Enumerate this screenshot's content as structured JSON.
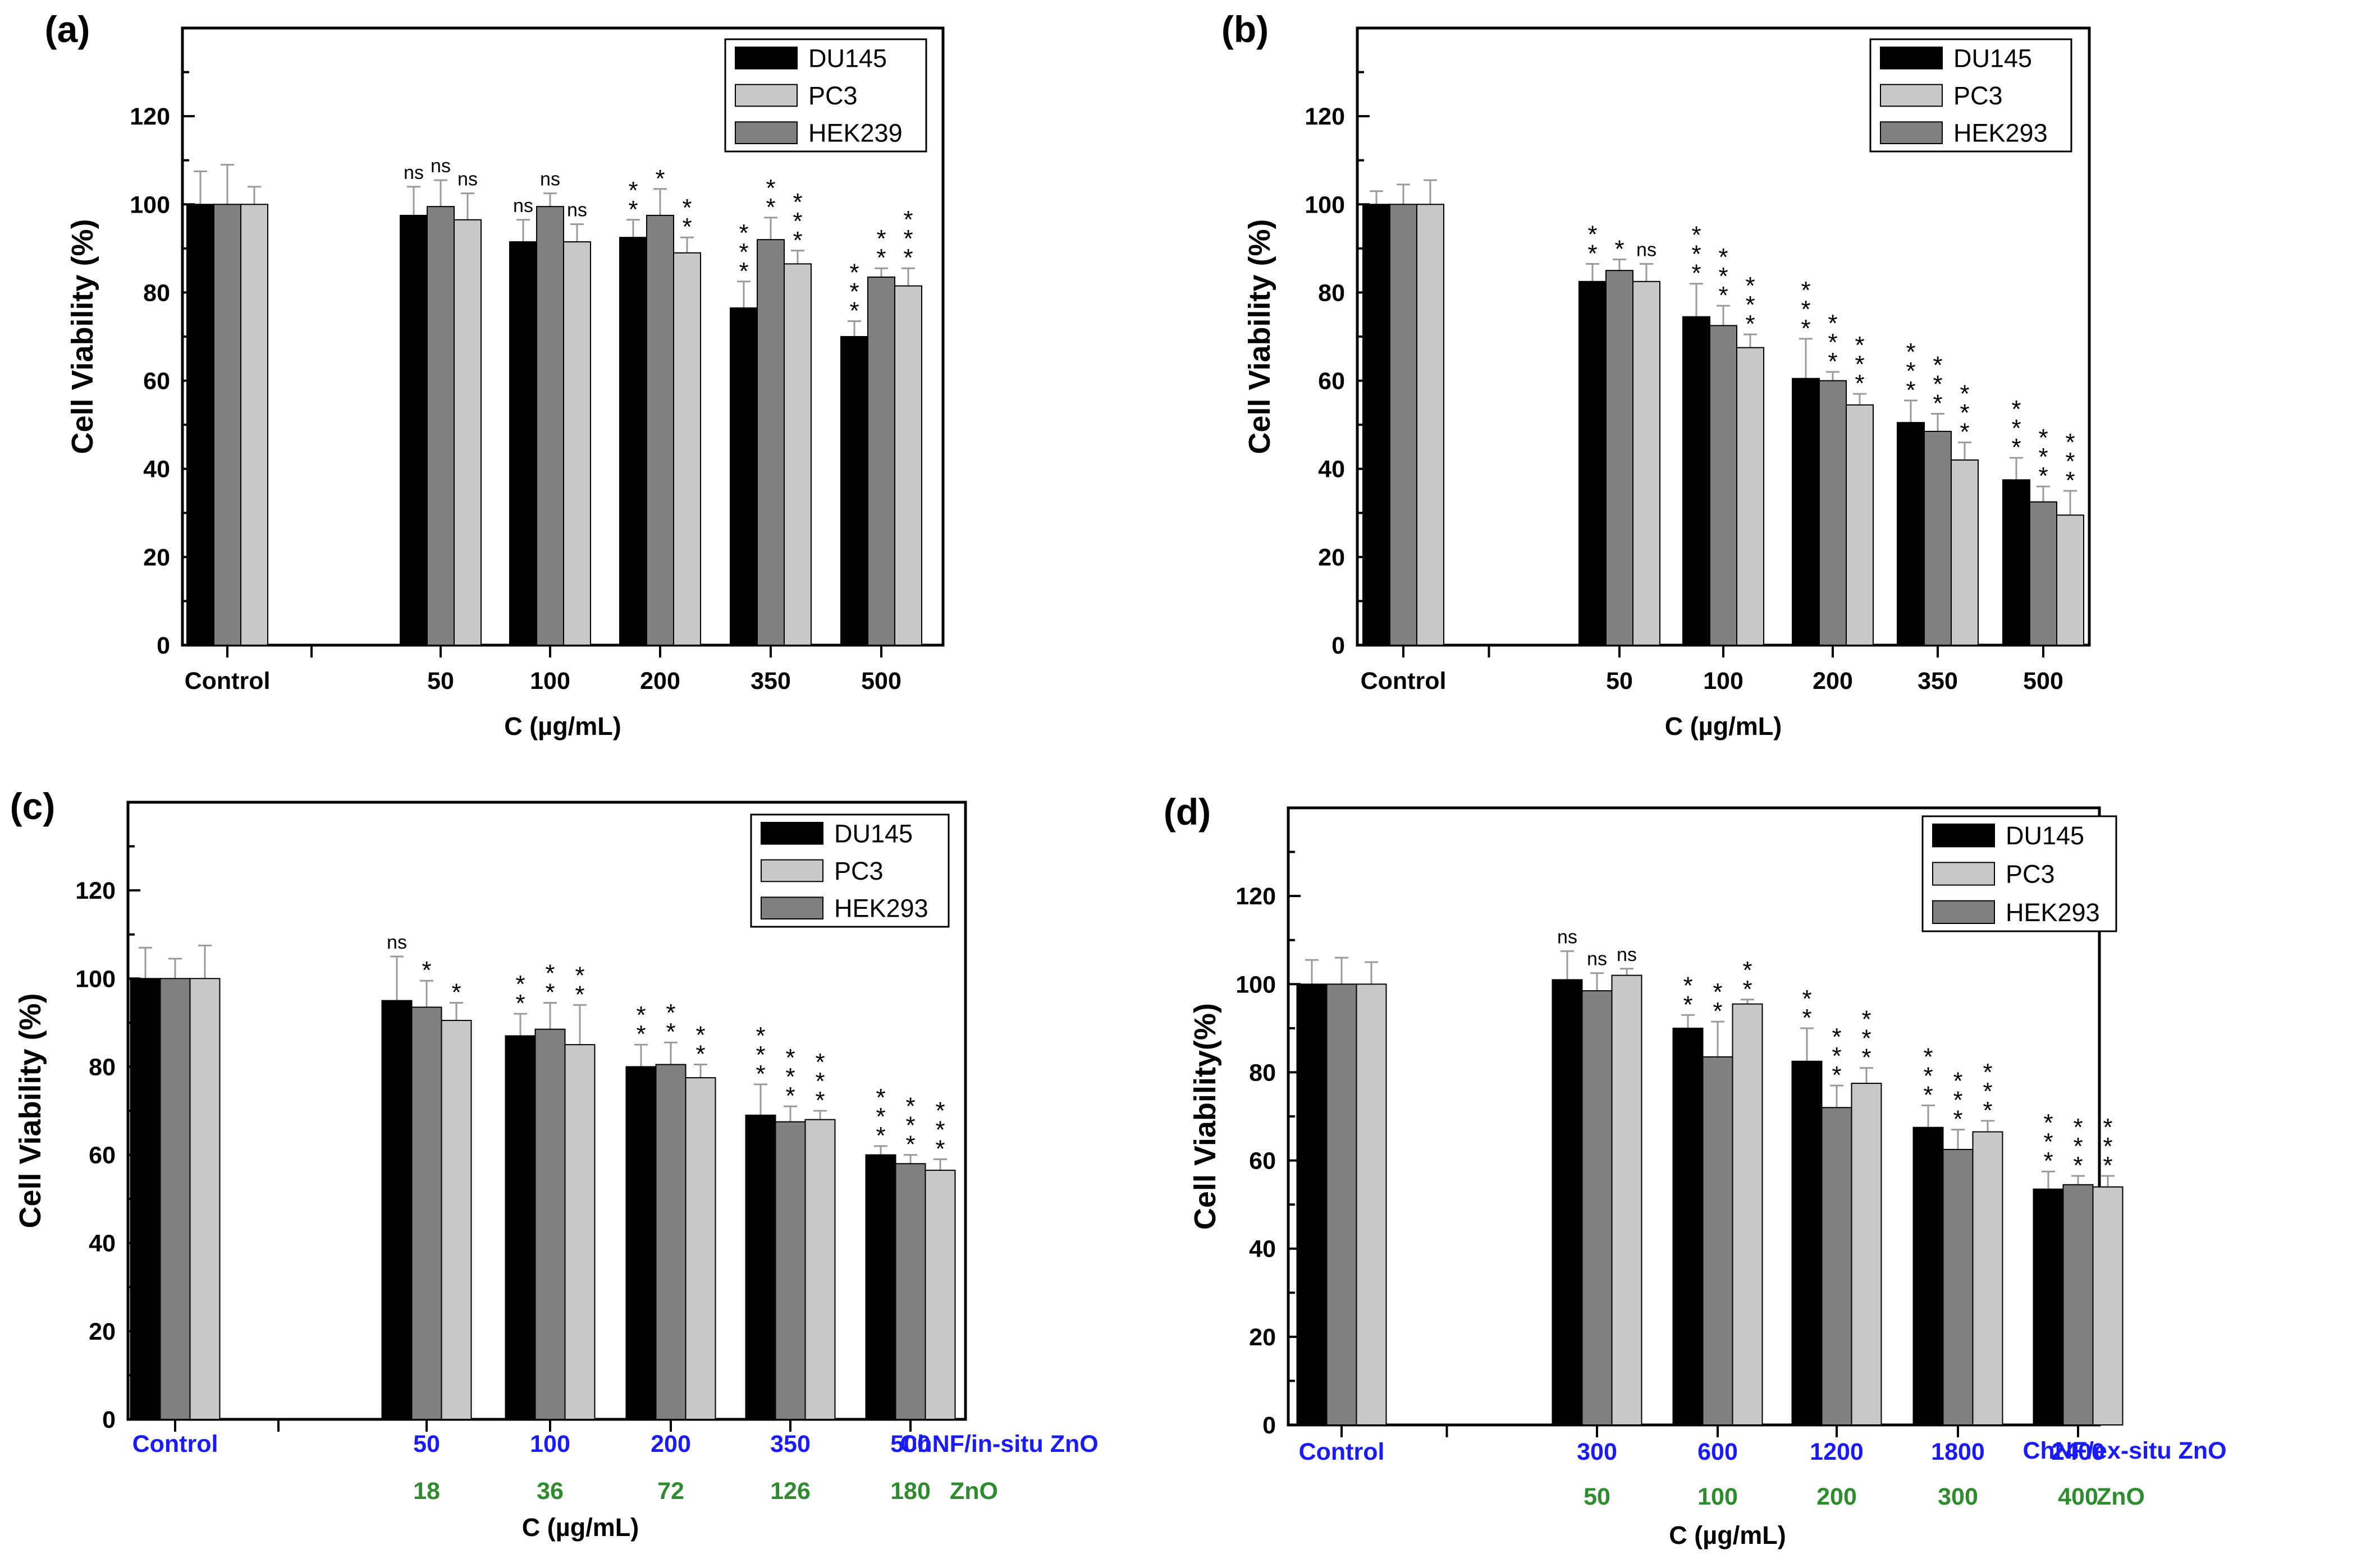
{
  "colors": {
    "du145": "#000000",
    "pc3": "#c8c8c8",
    "hek": "#808080",
    "blue_label": "#1a1aff",
    "green_label": "#2e8b2e",
    "frame": "#000000"
  },
  "chart_data": [
    {
      "panel_label": "(a)",
      "type": "bar",
      "ylabel": "Cell Viability (%)",
      "xlabel": "C (µg/mL)",
      "ylim": [
        0,
        140
      ],
      "yticks": [
        0,
        20,
        40,
        60,
        80,
        100,
        120
      ],
      "categories": [
        "Control",
        "50",
        "100",
        "200",
        "350",
        "500"
      ],
      "legend": [
        "DU145",
        "PC3",
        "HEK239"
      ],
      "bar_order": [
        "DU145",
        "HEK239",
        "PC3"
      ],
      "series": [
        {
          "name": "DU145",
          "color_key": "du145",
          "values": [
            100,
            97.5,
            91.5,
            92.5,
            76.5,
            70
          ],
          "errors": [
            7.5,
            6.5,
            5,
            4,
            6,
            3.5
          ],
          "sig": [
            "",
            "ns",
            "ns",
            "**",
            "***",
            "***"
          ]
        },
        {
          "name": "HEK239",
          "color_key": "hek",
          "values": [
            100,
            99.5,
            99.5,
            97.5,
            92,
            83.5
          ],
          "errors": [
            9,
            6,
            3,
            6,
            5,
            2
          ],
          "sig": [
            "",
            "ns",
            "ns",
            "*",
            "**",
            "**"
          ]
        },
        {
          "name": "PC3",
          "color_key": "pc3",
          "values": [
            100,
            96.5,
            91.5,
            89,
            86.5,
            81.5
          ],
          "errors": [
            4,
            6,
            4,
            3.5,
            3,
            4
          ],
          "sig": [
            "",
            "ns",
            "ns",
            "**",
            "***",
            "***"
          ]
        }
      ]
    },
    {
      "panel_label": "(b)",
      "type": "bar",
      "ylabel": "Cell Viability (%)",
      "xlabel": "C (µg/mL)",
      "ylim": [
        0,
        140
      ],
      "yticks": [
        0,
        20,
        40,
        60,
        80,
        100,
        120
      ],
      "categories": [
        "Control",
        "50",
        "100",
        "200",
        "350",
        "500"
      ],
      "legend": [
        "DU145",
        "PC3",
        "HEK293"
      ],
      "bar_order": [
        "DU145",
        "HEK293",
        "PC3"
      ],
      "series": [
        {
          "name": "DU145",
          "color_key": "du145",
          "values": [
            100,
            82.5,
            74.5,
            60.5,
            50.5,
            37.5
          ],
          "errors": [
            3,
            4,
            7.5,
            9,
            5,
            5
          ],
          "sig": [
            "",
            "**",
            "***",
            "***",
            "***",
            "***"
          ]
        },
        {
          "name": "HEK293",
          "color_key": "hek",
          "values": [
            100,
            85,
            72.5,
            60,
            48.5,
            32.5
          ],
          "errors": [
            4.5,
            2.5,
            4.5,
            2,
            4,
            3.5
          ],
          "sig": [
            "",
            "*",
            "***",
            "***",
            "***",
            "***"
          ]
        },
        {
          "name": "PC3",
          "color_key": "pc3",
          "values": [
            100,
            82.5,
            67.5,
            54.5,
            42,
            29.5
          ],
          "errors": [
            5.5,
            4,
            3,
            2.5,
            4,
            5.5
          ],
          "sig": [
            "",
            "ns",
            "***",
            "***",
            "***",
            "***"
          ]
        }
      ]
    },
    {
      "panel_label": "(c)",
      "type": "bar",
      "ylabel": "Cell Viability (%)",
      "xlabel": "C (µg/mL)",
      "ylim": [
        0,
        140
      ],
      "yticks": [
        0,
        20,
        40,
        60,
        80,
        100,
        120
      ],
      "categories": [
        "Control",
        "50",
        "100",
        "200",
        "350",
        "500"
      ],
      "secondary_categories": [
        "",
        "18",
        "36",
        "72",
        "126",
        "180"
      ],
      "secondary_name": "ZnO",
      "primary_name": "ChNF/in-situ ZnO",
      "legend": [
        "DU145",
        "PC3",
        "HEK293"
      ],
      "bar_order": [
        "DU145",
        "HEK293",
        "PC3"
      ],
      "series": [
        {
          "name": "DU145",
          "color_key": "du145",
          "values": [
            100,
            95,
            87,
            80,
            69,
            60
          ],
          "errors": [
            7,
            10,
            5,
            5,
            7,
            2
          ],
          "sig": [
            "",
            "ns",
            "**",
            "**",
            "***",
            "***"
          ]
        },
        {
          "name": "HEK293",
          "color_key": "hek",
          "values": [
            100,
            93.5,
            88.5,
            80.5,
            67.5,
            58
          ],
          "errors": [
            4.5,
            6,
            6,
            5,
            3.5,
            2
          ],
          "sig": [
            "",
            "*",
            "**",
            "**",
            "***",
            "***"
          ]
        },
        {
          "name": "PC3",
          "color_key": "pc3",
          "values": [
            100,
            90.5,
            85,
            77.5,
            68,
            56.5
          ],
          "errors": [
            7.5,
            4,
            9,
            3,
            2,
            2.5
          ],
          "sig": [
            "",
            "*",
            "**",
            "**",
            "***",
            "***"
          ]
        }
      ]
    },
    {
      "panel_label": "(d)",
      "type": "bar",
      "ylabel": "Cell Viability(%)",
      "xlabel": "C (µg/mL)",
      "ylim": [
        0,
        140
      ],
      "yticks": [
        0,
        20,
        40,
        60,
        80,
        100,
        120
      ],
      "categories": [
        "Control",
        "300",
        "600",
        "1200",
        "1800",
        "2400"
      ],
      "secondary_categories": [
        "",
        "50",
        "100",
        "200",
        "300",
        "400"
      ],
      "secondary_name": "ZnO",
      "primary_name": "ChNF/ex-situ ZnO",
      "legend": [
        "DU145",
        "PC3",
        "HEK293"
      ],
      "bar_order": [
        "DU145",
        "HEK293",
        "PC3"
      ],
      "series": [
        {
          "name": "DU145",
          "color_key": "du145",
          "values": [
            100,
            101,
            90,
            82.5,
            67.5,
            53.5
          ],
          "errors": [
            5.5,
            6.5,
            3,
            7.5,
            5,
            4
          ],
          "sig": [
            "",
            "ns",
            "**",
            "**",
            "***",
            "***"
          ]
        },
        {
          "name": "HEK293",
          "color_key": "hek",
          "values": [
            100,
            98.5,
            83.5,
            72,
            62.5,
            54.5
          ],
          "errors": [
            6,
            4,
            8,
            5,
            4.5,
            2
          ],
          "sig": [
            "",
            "ns",
            "**",
            "***",
            "***",
            "***"
          ]
        },
        {
          "name": "PC3",
          "color_key": "pc3",
          "values": [
            100,
            102,
            95.5,
            77.5,
            66.5,
            54
          ],
          "errors": [
            5,
            1.5,
            1,
            3.5,
            2.5,
            2.5
          ],
          "sig": [
            "",
            "ns",
            "**",
            "***",
            "***",
            "***"
          ]
        }
      ]
    }
  ]
}
